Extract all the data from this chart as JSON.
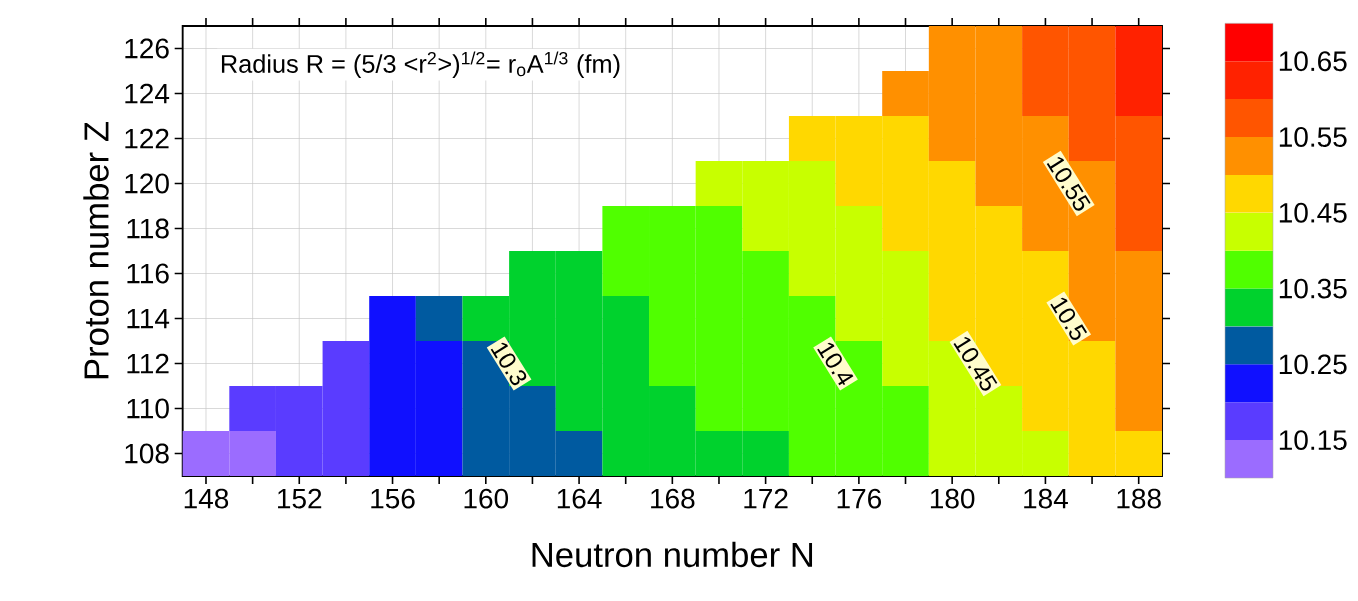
{
  "chart_data": {
    "type": "heatmap",
    "title": "Radius  R = (5/3 <r$^{2}$>)$^{1/2}$= r$_{o}$A$^{1/3}$ (fm)",
    "xlabel": "Neutron number N",
    "ylabel": "Proton number Z",
    "categories": [
      "148",
      null,
      "152",
      null,
      "156",
      null,
      "160",
      null,
      "164",
      null,
      "168",
      null,
      "172",
      null,
      "176",
      null,
      "180",
      null,
      "184",
      null,
      "188"
    ],
    "y_categories": [
      "126",
      "124",
      "122",
      "120",
      "118",
      "116",
      "114",
      "112",
      "110",
      "108"
    ],
    "cells": [
      [
        null,
        null,
        null,
        null,
        null,
        null,
        null,
        null,
        null,
        null,
        null,
        null,
        null,
        null,
        null,
        null,
        10.525,
        10.525,
        10.575,
        10.575,
        10.625
      ],
      [
        null,
        null,
        null,
        null,
        null,
        null,
        null,
        null,
        null,
        null,
        null,
        null,
        null,
        null,
        null,
        10.525,
        10.525,
        10.525,
        10.575,
        10.575,
        10.625
      ],
      [
        null,
        null,
        null,
        null,
        null,
        null,
        null,
        null,
        null,
        null,
        null,
        null,
        null,
        10.475,
        10.475,
        10.475,
        10.525,
        10.525,
        10.525,
        10.575,
        10.575
      ],
      [
        null,
        null,
        null,
        null,
        null,
        null,
        null,
        null,
        null,
        null,
        null,
        10.425,
        10.425,
        10.425,
        10.475,
        10.475,
        10.475,
        10.525,
        10.525,
        10.525,
        10.575
      ],
      [
        null,
        null,
        null,
        null,
        null,
        null,
        null,
        null,
        null,
        10.375,
        10.375,
        10.375,
        10.425,
        10.425,
        10.425,
        10.475,
        10.475,
        10.475,
        10.525,
        10.525,
        10.575
      ],
      [
        null,
        null,
        null,
        null,
        null,
        null,
        null,
        10.325,
        10.325,
        10.375,
        10.375,
        10.375,
        10.375,
        10.425,
        10.425,
        10.425,
        10.475,
        10.475,
        10.475,
        10.525,
        10.525
      ],
      [
        null,
        null,
        null,
        null,
        10.225,
        10.275,
        10.325,
        10.325,
        10.325,
        10.325,
        10.375,
        10.375,
        10.375,
        10.375,
        10.425,
        10.425,
        10.475,
        10.475,
        10.475,
        10.525,
        10.525
      ],
      [
        null,
        null,
        null,
        10.175,
        10.225,
        10.225,
        10.275,
        10.325,
        10.325,
        10.325,
        10.375,
        10.375,
        10.375,
        10.375,
        10.375,
        10.425,
        10.425,
        10.475,
        10.475,
        10.475,
        10.525
      ],
      [
        null,
        10.175,
        10.175,
        10.175,
        10.225,
        10.225,
        10.275,
        10.275,
        10.325,
        10.325,
        10.325,
        10.375,
        10.375,
        10.375,
        10.375,
        10.375,
        10.425,
        10.425,
        10.475,
        10.475,
        10.525
      ],
      [
        10.125,
        10.125,
        10.175,
        10.175,
        10.225,
        10.225,
        10.275,
        10.275,
        10.275,
        10.325,
        10.325,
        10.325,
        10.325,
        10.375,
        10.375,
        10.375,
        10.425,
        10.425,
        10.425,
        10.475,
        10.475
      ]
    ],
    "clim": [
      10.1,
      10.7
    ],
    "cticks": [
      10.15,
      10.25,
      10.35,
      10.45,
      10.55,
      10.65
    ],
    "grid": true,
    "annotations": [
      "10.3",
      "10.4",
      "10.45",
      "10.5",
      "10.55"
    ]
  }
}
